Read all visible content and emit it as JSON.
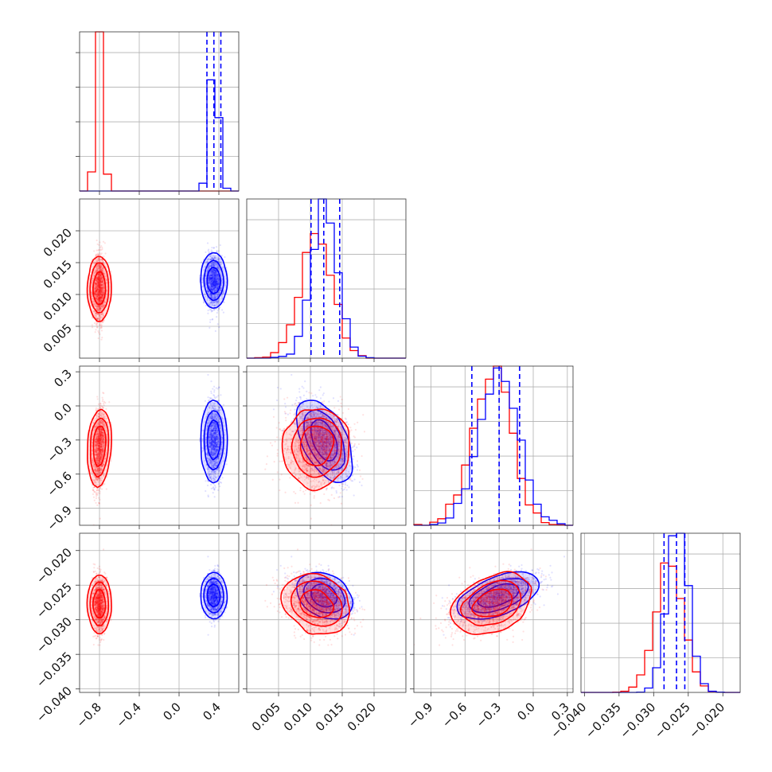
{
  "chart_data": {
    "type": "corner",
    "colors": {
      "primary": "#ff0000",
      "secondary": "#0000ff"
    },
    "grid": true,
    "parameters": [
      {
        "range": [
          -1.0,
          0.6
        ],
        "ticks": [
          -0.8,
          -0.4,
          0.0,
          0.4
        ],
        "labels": [
          "−0.8",
          "−0.4",
          "0.0",
          "0.4"
        ]
      },
      {
        "range": [
          0.0,
          0.025
        ],
        "ticks": [
          0.005,
          0.01,
          0.015,
          0.02
        ],
        "labels": [
          "0.005",
          "0.010",
          "0.015",
          "0.020"
        ]
      },
      {
        "range": [
          -1.05,
          0.35
        ],
        "ticks": [
          -0.9,
          -0.6,
          -0.3,
          0.0,
          0.3
        ],
        "labels": [
          "−0.9",
          "−0.6",
          "−0.3",
          "0.0",
          "0.3"
        ]
      },
      {
        "range": [
          -0.0405,
          -0.0175
        ],
        "ticks": [
          -0.04,
          -0.035,
          -0.03,
          -0.025,
          -0.02
        ],
        "labels": [
          "−0.040",
          "−0.035",
          "−0.030",
          "−0.025",
          "−0.020"
        ]
      }
    ],
    "distributions": [
      {
        "color": "#ff0000",
        "mean": [
          -0.8,
          0.011,
          -0.36,
          -0.0278
        ],
        "std": [
          0.03,
          0.0025,
          0.17,
          0.002
        ],
        "corr": [
          [
            1.0,
            0.0,
            0.35,
            0.0
          ],
          [
            0.0,
            1.0,
            0.0,
            -0.25
          ],
          [
            0.35,
            0.0,
            1.0,
            0.35
          ],
          [
            0.0,
            -0.25,
            0.35,
            1.0
          ]
        ],
        "quantile_lines": false
      },
      {
        "color": "#0000ff",
        "mean": [
          0.35,
          0.0122,
          -0.3,
          -0.0265
        ],
        "std": [
          0.04,
          0.002,
          0.17,
          0.0015
        ],
        "corr": [
          [
            1.0,
            0.0,
            0.0,
            0.0
          ],
          [
            0.0,
            1.0,
            -0.55,
            -0.35
          ],
          [
            0.0,
            -0.55,
            1.0,
            0.6
          ],
          [
            0.0,
            -0.35,
            0.6,
            1.0
          ]
        ],
        "quantile_lines": true,
        "quantiles": [
          [
            0.28,
            0.35,
            0.42
          ],
          [
            0.0101,
            0.0121,
            0.0146
          ],
          [
            -0.54,
            -0.3,
            -0.12
          ],
          [
            -0.0285,
            -0.0267,
            -0.0255
          ]
        ]
      }
    ]
  }
}
